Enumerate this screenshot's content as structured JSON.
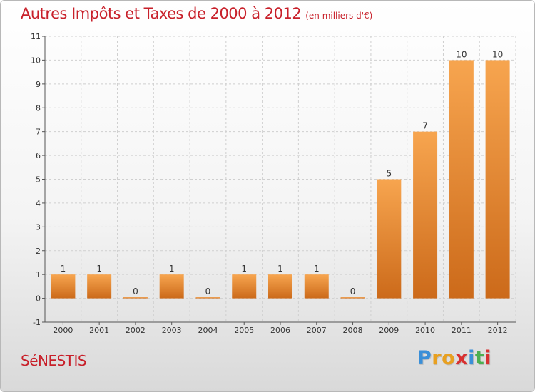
{
  "header": {
    "title": "Autres Impôts et Taxes de 2000 à 2012",
    "unit": "(en milliers d'€)"
  },
  "footer": {
    "commune": "SéNESTIS",
    "logo": [
      "P",
      "r",
      "o",
      "x",
      "i",
      "t",
      "i"
    ]
  },
  "colors": {
    "title": "#c8202a",
    "bar_light": "#f7a54f",
    "bar_dark": "#cc6a1a",
    "logo": [
      "#3a8fd8",
      "#e8a020",
      "#e8a020",
      "#d83030",
      "#3a8fd8",
      "#4caf50",
      "#d83030"
    ]
  },
  "chart_data": {
    "type": "bar",
    "categories": [
      "2000",
      "2001",
      "2002",
      "2003",
      "2004",
      "2005",
      "2006",
      "2007",
      "2008",
      "2009",
      "2010",
      "2011",
      "2012"
    ],
    "values": [
      1,
      1,
      0,
      1,
      0,
      1,
      1,
      1,
      0,
      5,
      7,
      10,
      10
    ],
    "value_labels": [
      "1",
      "1",
      "0",
      "1",
      "0",
      "1",
      "1",
      "1",
      "0",
      "5",
      "7",
      "10",
      "10"
    ],
    "ylim": [
      -1,
      11
    ],
    "yticks": [
      -1,
      0,
      1,
      2,
      3,
      4,
      5,
      6,
      7,
      8,
      9,
      10,
      11
    ],
    "ytick_labels": [
      "-1",
      "0",
      "1",
      "2",
      "3",
      "4",
      "5",
      "6",
      "7",
      "8",
      "9",
      "10",
      "11"
    ],
    "grid": true
  }
}
